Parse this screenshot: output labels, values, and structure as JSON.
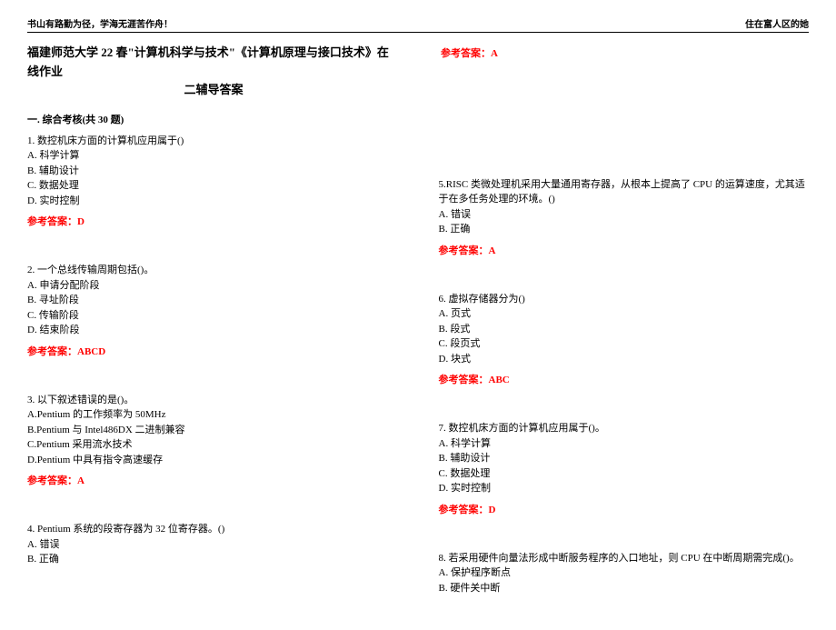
{
  "header": {
    "left": "书山有路勤为径，学海无涯苦作舟！",
    "right": "住在富人区的她"
  },
  "title_line1": "福建师范大学 22 春\"计算机科学与技术\"《计算机原理与接口技术》在线作业",
  "title_line2": "二辅导答案",
  "title_answer": "参考答案：A",
  "section": "一. 综合考核(共 30 题)",
  "left_questions": [
    {
      "text": "1. 数控机床方面的计算机应用属于()",
      "opts": [
        "A. 科学计算",
        "B. 辅助设计",
        "C. 数据处理",
        "D. 实时控制"
      ],
      "answer": "参考答案：D"
    },
    {
      "text": "2. 一个总线传输周期包括()。",
      "opts": [
        "A. 申请分配阶段",
        "B. 寻址阶段",
        "C. 传输阶段",
        "D. 结束阶段"
      ],
      "answer": "参考答案：ABCD"
    },
    {
      "text": "3. 以下叙述错误的是()。",
      "opts": [
        "A.Pentium 的工作频率为 50MHz",
        "B.Pentium 与 Intel486DX 二进制兼容",
        "C.Pentium 采用流水技术",
        "D.Pentium 中具有指令高速缓存"
      ],
      "answer": "参考答案：A"
    },
    {
      "text": "4. Pentium 系统的段寄存器为 32 位寄存器。()",
      "opts": [
        "A. 错误",
        "B. 正确"
      ],
      "answer": ""
    }
  ],
  "right_questions": [
    {
      "text": "5.RISC 类微处理机采用大量通用寄存器，从根本上提高了 CPU 的运算速度，尤其适于在多任务处理的环境。()",
      "opts": [
        "A. 错误",
        "B. 正确"
      ],
      "answer": "参考答案：A"
    },
    {
      "text": "6. 虚拟存储器分为()",
      "opts": [
        "A. 页式",
        "B. 段式",
        "C. 段页式",
        "D. 块式"
      ],
      "answer": "参考答案：ABC"
    },
    {
      "text": "7. 数控机床方面的计算机应用属于()。",
      "opts": [
        "A. 科学计算",
        "B. 辅助设计",
        "C. 数据处理",
        "D. 实时控制"
      ],
      "answer": "参考答案：D"
    },
    {
      "text": "8. 若采用硬件向量法形成中断服务程序的入口地址，则 CPU 在中断周期需完成()。",
      "opts": [
        "A. 保护程序断点",
        "B. 硬件关中断"
      ],
      "answer": ""
    }
  ]
}
